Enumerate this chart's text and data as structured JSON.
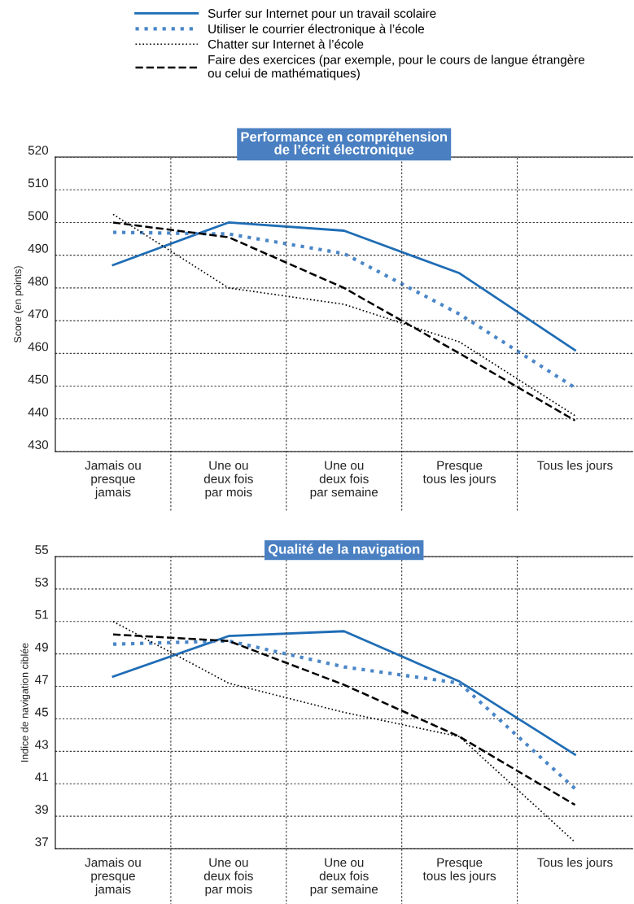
{
  "chart_data": [
    {
      "type": "line",
      "title": "Performance en compréhension\nde l’écrit électronique",
      "ylabel": "Score (en points)",
      "categories": [
        "Jamais ou\npresque\njamais",
        "Une ou\ndeux fois\npar mois",
        "Une ou\ndeux fois\npar semaine",
        "Presque\ntous les jours",
        "Tous les jours"
      ],
      "series": [
        {
          "name": "Surfer sur Internet pour un travail scolaire",
          "color": "#1f6db5",
          "line_style": "solid",
          "values": [
            487,
            500,
            497.5,
            484.5,
            461
          ]
        },
        {
          "name": "Utiliser le courrier électronique à l’école",
          "color": "#4a86c8",
          "line_style": "dotted",
          "values": [
            497,
            496.5,
            490.5,
            472,
            449.5
          ]
        },
        {
          "name": "Chatter sur Internet à l’école",
          "color": "#000000",
          "line_style": "dotted",
          "values": [
            502.5,
            480,
            475,
            463.5,
            441
          ]
        },
        {
          "name": "Faire des exercices (par exemple, pour le cours de langue étrangère\nou celui de mathématiques)",
          "color": "#000000",
          "line_style": "dashed",
          "values": [
            500,
            495.5,
            480,
            460,
            439.5
          ]
        }
      ],
      "ylim": [
        430,
        520
      ],
      "yticks": [
        430,
        440,
        450,
        460,
        470,
        480,
        490,
        500,
        510,
        520
      ],
      "grid": true,
      "legend": "top"
    },
    {
      "type": "line",
      "title": "Qualité de la navigation",
      "ylabel": "Indice de navigation ciblée",
      "categories": [
        "Jamais ou\npresque\njamais",
        "Une ou\ndeux fois\npar mois",
        "Une ou\ndeux fois\npar semaine",
        "Presque\ntous les jours",
        "Tous les jours"
      ],
      "series": [
        {
          "color": "#1f6db5",
          "line_style": "solid",
          "values": [
            47.6,
            50.1,
            50.4,
            47.3,
            42.8
          ]
        },
        {
          "color": "#4a86c8",
          "line_style": "dotted",
          "values": [
            49.6,
            49.8,
            48.2,
            47.2,
            40.7
          ]
        },
        {
          "color": "#000000",
          "line_style": "dotted",
          "values": [
            51,
            47.2,
            45.4,
            43.9,
            37.4
          ]
        },
        {
          "color": "#000000",
          "line_style": "dashed",
          "values": [
            50.2,
            49.8,
            47.1,
            43.9,
            39.7
          ]
        }
      ],
      "ylim": [
        37,
        55
      ],
      "yticks": [
        37,
        39,
        41,
        43,
        45,
        47,
        49,
        51,
        53,
        55
      ],
      "grid": true
    }
  ]
}
